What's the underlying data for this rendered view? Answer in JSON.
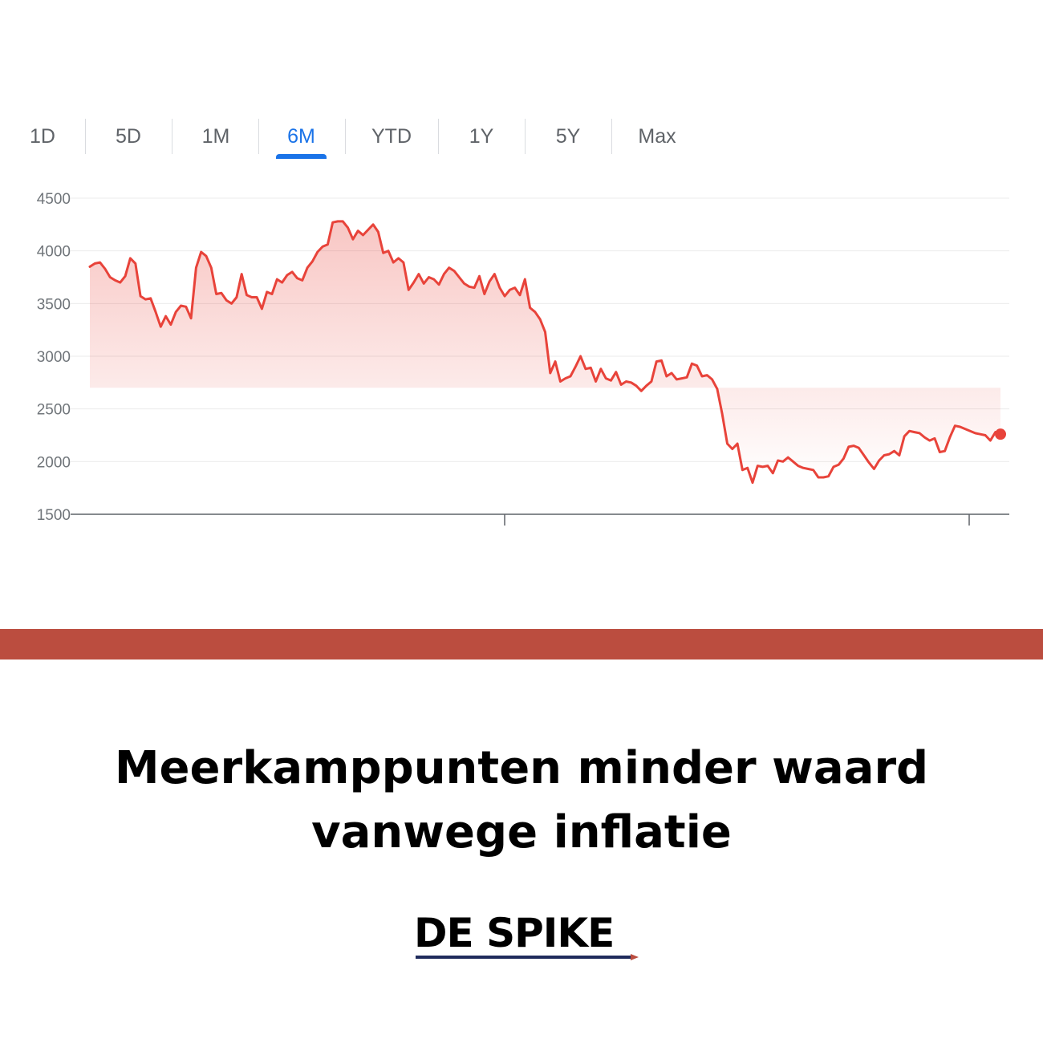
{
  "range_tabs": [
    {
      "label": "1D",
      "active": false
    },
    {
      "label": "5D",
      "active": false
    },
    {
      "label": "1M",
      "active": false
    },
    {
      "label": "6M",
      "active": true
    },
    {
      "label": "YTD",
      "active": false
    },
    {
      "label": "1Y",
      "active": false
    },
    {
      "label": "5Y",
      "active": false
    },
    {
      "label": "Max",
      "active": false
    }
  ],
  "colors": {
    "line": "#e8433a",
    "accent": "#1a73e8",
    "band": "#bb4d3f",
    "brand_underline": "#1f2b5c"
  },
  "chart_data": {
    "type": "area",
    "title": "",
    "xlabel": "",
    "ylabel": "",
    "ylim": [
      1500,
      4500
    ],
    "yticks": [
      4500,
      4000,
      3500,
      3000,
      2500,
      2000,
      1500
    ],
    "grid": true,
    "series": [
      {
        "values": [
          3850,
          3880,
          3890,
          3830,
          3750,
          3720,
          3700,
          3760,
          3930,
          3880,
          3570,
          3540,
          3550,
          3420,
          3280,
          3380,
          3300,
          3420,
          3480,
          3470,
          3360,
          3840,
          3990,
          3950,
          3840,
          3590,
          3600,
          3530,
          3500,
          3560,
          3780,
          3580,
          3560,
          3560,
          3450,
          3610,
          3590,
          3730,
          3700,
          3770,
          3800,
          3740,
          3720,
          3840,
          3900,
          3990,
          4040,
          4060,
          4270,
          4280,
          4280,
          4220,
          4110,
          4190,
          4150,
          4200,
          4250,
          4180,
          3980,
          4000,
          3890,
          3930,
          3890,
          3630,
          3700,
          3780,
          3690,
          3750,
          3730,
          3680,
          3780,
          3840,
          3810,
          3750,
          3690,
          3660,
          3650,
          3760,
          3590,
          3710,
          3780,
          3650,
          3570,
          3630,
          3650,
          3580,
          3730,
          3460,
          3420,
          3350,
          3230,
          2840,
          2950,
          2760,
          2790,
          2810,
          2900,
          3000,
          2880,
          2890,
          2760,
          2880,
          2790,
          2770,
          2850,
          2730,
          2760,
          2750,
          2720,
          2670,
          2720,
          2760,
          2950,
          2960,
          2810,
          2840,
          2780,
          2790,
          2800,
          2930,
          2910,
          2810,
          2820,
          2780,
          2690,
          2450,
          2170,
          2120,
          2170,
          1920,
          1940,
          1800,
          1960,
          1950,
          1960,
          1890,
          2010,
          2000,
          2040,
          2000,
          1960,
          1940,
          1930,
          1920,
          1850,
          1850,
          1860,
          1950,
          1970,
          2030,
          2140,
          2150,
          2130,
          2060,
          1990,
          1930,
          2010,
          2060,
          2070,
          2100,
          2060,
          2240,
          2290,
          2280,
          2270,
          2230,
          2200,
          2220,
          2090,
          2100,
          2230,
          2340,
          2330,
          2310,
          2290,
          2270,
          2260,
          2250,
          2200,
          2280,
          2260
        ]
      }
    ],
    "end_marker": true
  },
  "headline": {
    "line1": "Meerkamppunten minder waard",
    "line2": "vanwege inflatie"
  },
  "brand": {
    "name": "DE SPIKE"
  }
}
